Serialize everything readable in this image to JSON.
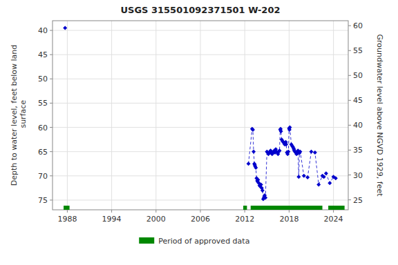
{
  "chart_data": {
    "type": "scatter",
    "title": "USGS 315501092371501 W-202",
    "y_label": "Depth to water level, feet below land\n surface",
    "y2_label": "Groundwater level above NGVD 1929, feet",
    "xlim": [
      1986,
      2026
    ],
    "xticks": [
      1988,
      1994,
      2000,
      2006,
      2012,
      2018,
      2024
    ],
    "ylim": [
      77,
      38
    ],
    "yticks": [
      40,
      45,
      50,
      55,
      60,
      65,
      70,
      75
    ],
    "y2lim": [
      23,
      61
    ],
    "y2ticks": [
      60,
      55,
      50,
      45,
      40,
      35,
      30,
      25
    ],
    "grid": true,
    "legend": "bottom",
    "series": [
      {
        "type": "scatter",
        "color": "#0000cc",
        "marker": "diamond",
        "line_style": "none",
        "x": [
          1987.7,
          2012.5,
          2013.0,
          2013.1,
          2013.2,
          2013.3,
          2013.35,
          2013.4,
          2013.5,
          2013.6,
          2013.7,
          2013.75,
          2013.8,
          2013.9,
          2014.0,
          2014.1,
          2014.2,
          2014.3,
          2014.4,
          2014.5,
          2014.6,
          2014.65,
          2014.7,
          2014.8,
          2015.0,
          2015.1,
          2015.2,
          2015.3,
          2015.4,
          2015.5,
          2015.6,
          2015.7,
          2015.8,
          2015.9,
          2016.0,
          2016.1,
          2016.2,
          2016.3,
          2016.4,
          2016.5,
          2016.6,
          2016.7,
          2016.8,
          2016.85,
          2016.9,
          2017.0,
          2017.1,
          2017.2,
          2017.3,
          2017.4,
          2017.5,
          2017.55,
          2017.6,
          2017.7,
          2017.8,
          2017.9,
          2018.0,
          2018.05,
          2018.1,
          2018.3,
          2018.4,
          2018.5,
          2018.6,
          2018.65,
          2018.7,
          2018.8,
          2018.9,
          2019.0,
          2019.1,
          2019.2,
          2019.3,
          2019.4,
          2019.5,
          2020.0,
          2020.5,
          2021.0,
          2021.5,
          2022.0,
          2022.5,
          2022.7,
          2023.0,
          2023.5,
          2024.0,
          2024.3
        ],
        "values": [
          39.5,
          67.5,
          60.3,
          60.5,
          65.0,
          67.5,
          67.7,
          68.0,
          68.3,
          70.5,
          71.0,
          71.2,
          70.8,
          71.5,
          72.0,
          72.2,
          71.8,
          72.5,
          73.0,
          74.8,
          74.5,
          74.3,
          74.0,
          74.5,
          65.0,
          65.2,
          65.5,
          65.3,
          65.0,
          64.8,
          65.2,
          65.5,
          65.3,
          65.0,
          64.8,
          65.2,
          64.5,
          65.0,
          65.2,
          65.5,
          65.0,
          64.8,
          60.5,
          60.3,
          60.8,
          62.5,
          62.8,
          63.0,
          63.2,
          63.5,
          63.2,
          63.0,
          63.5,
          65.2,
          65.5,
          65.0,
          60.2,
          60.5,
          60.0,
          63.5,
          63.8,
          64.0,
          64.3,
          64.5,
          64.8,
          65.0,
          65.2,
          65.5,
          65.0,
          64.8,
          70.2,
          65.3,
          65.0,
          70.0,
          70.3,
          65.0,
          65.2,
          71.8,
          70.0,
          70.2,
          69.5,
          71.5,
          70.2,
          70.5
        ]
      },
      {
        "type": "line",
        "color": "#0000cc",
        "marker": "none",
        "line_style": "dashed",
        "x": [
          2012.5,
          2013.0,
          2013.1,
          2013.2,
          2013.3,
          2013.35,
          2013.4,
          2013.5,
          2013.6,
          2013.7,
          2013.75,
          2013.8,
          2013.9,
          2014.0,
          2014.1,
          2014.2,
          2014.3,
          2014.4,
          2014.5,
          2014.6,
          2014.65,
          2014.7,
          2014.8,
          2015.0,
          2015.1,
          2015.2,
          2015.3,
          2015.4,
          2015.5,
          2015.6,
          2015.7,
          2015.8,
          2015.9,
          2016.0,
          2016.1,
          2016.2,
          2016.3,
          2016.4,
          2016.5,
          2016.6,
          2016.7,
          2016.8,
          2016.85,
          2016.9,
          2017.0,
          2017.1,
          2017.2,
          2017.3,
          2017.4,
          2017.5,
          2017.55,
          2017.6,
          2017.7,
          2017.8,
          2017.9,
          2018.0,
          2018.05,
          2018.1,
          2018.3,
          2018.4,
          2018.5,
          2018.6,
          2018.65,
          2018.7,
          2018.8,
          2018.9,
          2019.0,
          2019.1,
          2019.2,
          2019.3,
          2019.4,
          2019.5,
          2020.0,
          2020.5,
          2021.0,
          2021.5,
          2022.0,
          2022.5,
          2022.7,
          2023.0,
          2023.5,
          2024.0,
          2024.3
        ],
        "values": [
          67.5,
          60.3,
          60.5,
          65.0,
          67.5,
          67.7,
          68.0,
          68.3,
          70.5,
          71.0,
          71.2,
          70.8,
          71.5,
          72.0,
          72.2,
          71.8,
          72.5,
          73.0,
          74.8,
          74.5,
          74.3,
          74.0,
          74.5,
          65.0,
          65.2,
          65.5,
          65.3,
          65.0,
          64.8,
          65.2,
          65.5,
          65.3,
          65.0,
          64.8,
          65.2,
          64.5,
          65.0,
          65.2,
          65.5,
          65.0,
          64.8,
          60.5,
          60.3,
          60.8,
          62.5,
          62.8,
          63.0,
          63.2,
          63.5,
          63.2,
          63.0,
          63.5,
          65.2,
          65.5,
          65.0,
          60.2,
          60.5,
          60.0,
          63.5,
          63.8,
          64.0,
          64.3,
          64.5,
          64.8,
          65.0,
          65.2,
          65.5,
          65.0,
          64.8,
          70.2,
          65.3,
          65.0,
          70.0,
          70.3,
          65.0,
          65.2,
          71.8,
          70.0,
          70.2,
          69.5,
          71.5,
          70.2,
          70.5
        ]
      },
      {
        "type": "interval",
        "name": "Period of approved data",
        "color": "#008800",
        "x": [
          1987.5,
          2011.8,
          2012.8,
          2023.3
        ],
        "x_end": [
          1988.3,
          2012.3,
          2022.5,
          2025.5
        ]
      }
    ]
  }
}
